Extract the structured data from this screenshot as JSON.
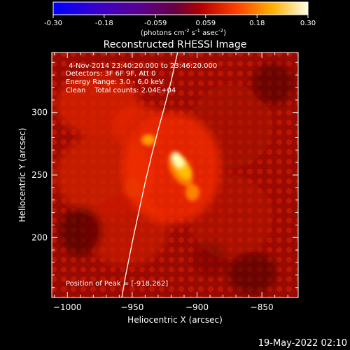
{
  "colorbar": {
    "ticks": [
      -0.3,
      -0.18,
      -0.059,
      0.059,
      0.18,
      0.3
    ],
    "tick_labels": [
      "-0.30",
      "-0.18",
      "-0.059",
      "0.059",
      "0.18",
      "0.30"
    ],
    "units_main": "(photons cm",
    "units_sup1": "-2",
    "units_mid": " s",
    "units_sup2": "-1",
    "units_mid2": " asec",
    "units_sup3": "-2",
    "units_end": ")",
    "range": [
      -0.3,
      0.3
    ]
  },
  "chart_data": {
    "type": "heatmap",
    "title": "Reconstructed RHESSI Image",
    "xlabel": "Heliocentric X (arcsec)",
    "ylabel": "Heliocentric Y (arcsec)",
    "xlim": [
      -1012,
      -822
    ],
    "ylim": [
      152,
      348
    ],
    "xticks": [
      -1000,
      -950,
      -900,
      -850
    ],
    "xtick_labels": [
      "−1000",
      "−950",
      "−900",
      "−850"
    ],
    "yticks": [
      200,
      250,
      300
    ],
    "ytick_labels": [
      "200",
      "250",
      "300"
    ],
    "peak": [
      -918,
      262
    ],
    "annotations": [
      "4-Nov-2014 23:40:20.000 to 23:46:20.000",
      "Detectors: 3F 6F 9F, Att 0",
      "Energy Range: 3.0 - 6.0 keV",
      "Clean    Total counts: 2.04E+04"
    ],
    "peak_label": "Position of Peak = [-918,262]",
    "limb_curve_x": [
      -958,
      -955,
      -950,
      -945,
      -940,
      -935,
      -930,
      -925,
      -920,
      -915
    ],
    "limb_curve_y": [
      152,
      170,
      196,
      220,
      244,
      266,
      286,
      305,
      325,
      348
    ]
  },
  "footer": {
    "timestamp": "19-May-2022 02:10"
  },
  "colors": {
    "background": "#000000",
    "limb": "#ffffff"
  }
}
